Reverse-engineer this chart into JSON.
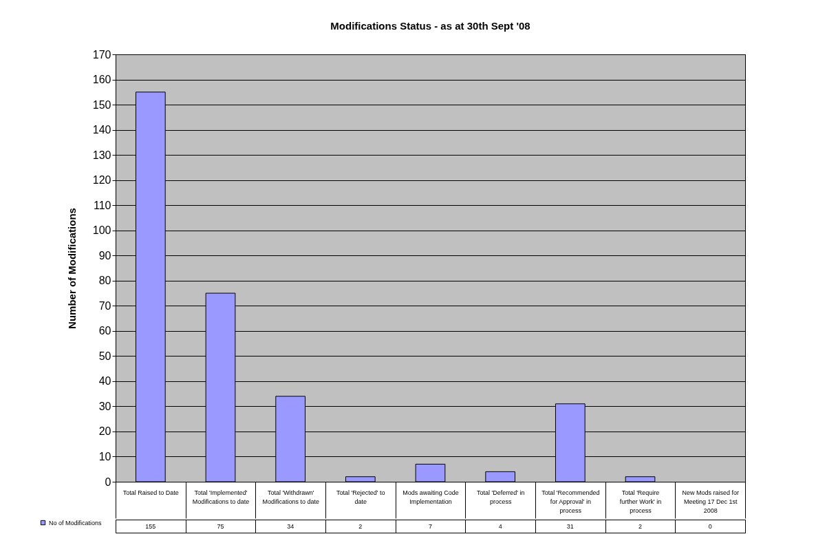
{
  "chart_data": {
    "type": "bar",
    "title": "Modifications Status - as at 30th Sept '08",
    "ylabel": "Number of Modifications",
    "categories": [
      "Total Raised to Date",
      "Total 'Implemented' Modifications to date",
      "Total 'Withdrawn' Modifications to date",
      "Total 'Rejected' to date",
      "Mods awaiting Code Implementation",
      "Total 'Deferred' in process",
      "Total 'Recommended for Approval' in process",
      "Total 'Require further Work' in process",
      "New Mods raised for Meeting 17 Dec 1st 2008"
    ],
    "series": [
      {
        "name": "No of Modifications",
        "color": "#9999ff",
        "values": [
          155,
          75,
          34,
          2,
          7,
          4,
          31,
          2,
          0
        ]
      }
    ],
    "ylim": [
      0,
      170
    ],
    "yticks": [
      0,
      10,
      20,
      30,
      40,
      50,
      60,
      70,
      80,
      90,
      100,
      110,
      120,
      130,
      140,
      150,
      160,
      170
    ],
    "grid": "y",
    "legend": "bottom left",
    "data_labels": true
  }
}
